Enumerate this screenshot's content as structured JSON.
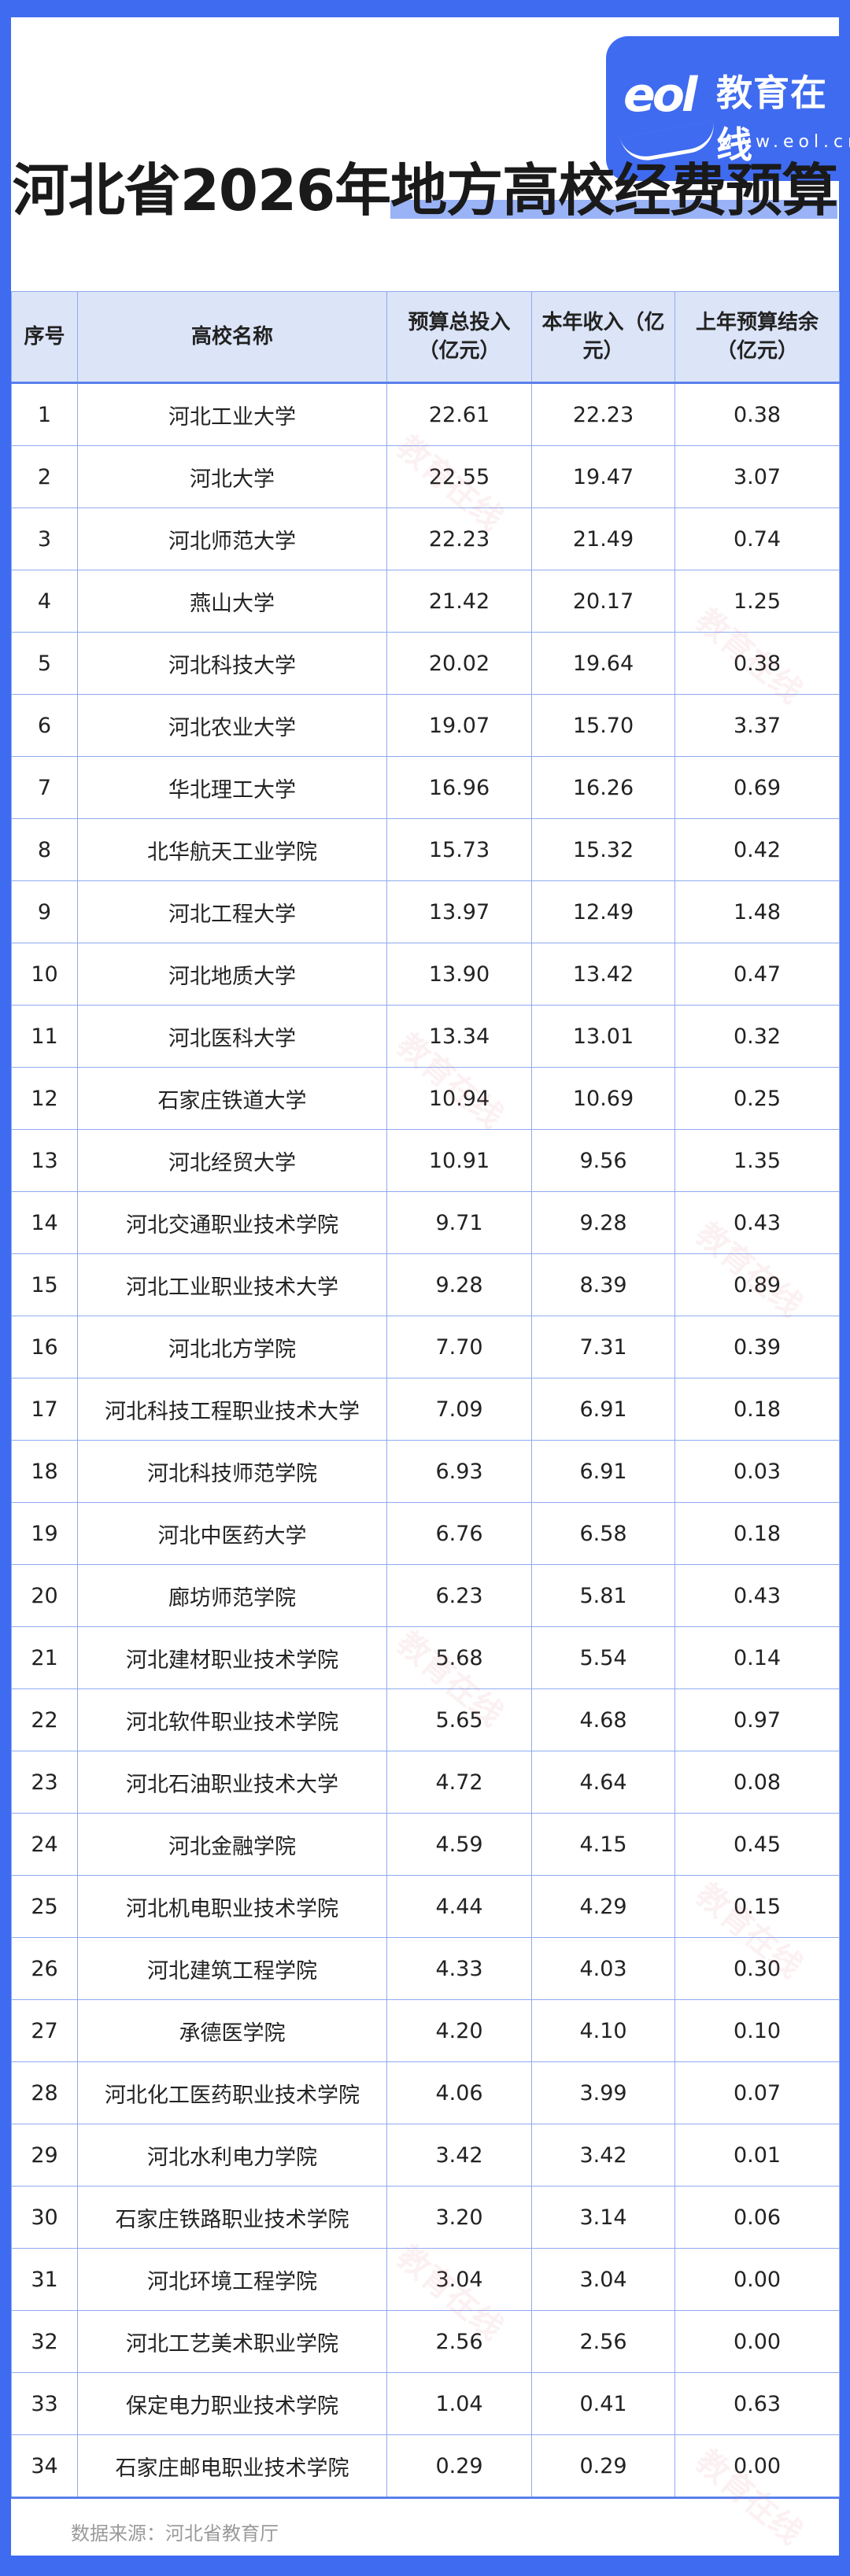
{
  "logo": {
    "mark": "eol",
    "name": "教育在线",
    "url": "www.eol.cn"
  },
  "title": {
    "part1": "河北省2026年",
    "part2": "地方高校经费预算"
  },
  "table": {
    "headers": [
      "序号",
      "高校名称",
      "预算总投入（亿元）",
      "本年收入（亿元）",
      "上年预算结余（亿元）"
    ],
    "rows": [
      [
        "1",
        "河北工业大学",
        "22.61",
        "22.23",
        "0.38"
      ],
      [
        "2",
        "河北大学",
        "22.55",
        "19.47",
        "3.07"
      ],
      [
        "3",
        "河北师范大学",
        "22.23",
        "21.49",
        "0.74"
      ],
      [
        "4",
        "燕山大学",
        "21.42",
        "20.17",
        "1.25"
      ],
      [
        "5",
        "河北科技大学",
        "20.02",
        "19.64",
        "0.38"
      ],
      [
        "6",
        "河北农业大学",
        "19.07",
        "15.70",
        "3.37"
      ],
      [
        "7",
        "华北理工大学",
        "16.96",
        "16.26",
        "0.69"
      ],
      [
        "8",
        "北华航天工业学院",
        "15.73",
        "15.32",
        "0.42"
      ],
      [
        "9",
        "河北工程大学",
        "13.97",
        "12.49",
        "1.48"
      ],
      [
        "10",
        "河北地质大学",
        "13.90",
        "13.42",
        "0.47"
      ],
      [
        "11",
        "河北医科大学",
        "13.34",
        "13.01",
        "0.32"
      ],
      [
        "12",
        "石家庄铁道大学",
        "10.94",
        "10.69",
        "0.25"
      ],
      [
        "13",
        "河北经贸大学",
        "10.91",
        "9.56",
        "1.35"
      ],
      [
        "14",
        "河北交通职业技术学院",
        "9.71",
        "9.28",
        "0.43"
      ],
      [
        "15",
        "河北工业职业技术大学",
        "9.28",
        "8.39",
        "0.89"
      ],
      [
        "16",
        "河北北方学院",
        "7.70",
        "7.31",
        "0.39"
      ],
      [
        "17",
        "河北科技工程职业技术大学",
        "7.09",
        "6.91",
        "0.18"
      ],
      [
        "18",
        "河北科技师范学院",
        "6.93",
        "6.91",
        "0.03"
      ],
      [
        "19",
        "河北中医药大学",
        "6.76",
        "6.58",
        "0.18"
      ],
      [
        "20",
        "廊坊师范学院",
        "6.23",
        "5.81",
        "0.43"
      ],
      [
        "21",
        "河北建材职业技术学院",
        "5.68",
        "5.54",
        "0.14"
      ],
      [
        "22",
        "河北软件职业技术学院",
        "5.65",
        "4.68",
        "0.97"
      ],
      [
        "23",
        "河北石油职业技术大学",
        "4.72",
        "4.64",
        "0.08"
      ],
      [
        "24",
        "河北金融学院",
        "4.59",
        "4.15",
        "0.45"
      ],
      [
        "25",
        "河北机电职业技术学院",
        "4.44",
        "4.29",
        "0.15"
      ],
      [
        "26",
        "河北建筑工程学院",
        "4.33",
        "4.03",
        "0.30"
      ],
      [
        "27",
        "承德医学院",
        "4.20",
        "4.10",
        "0.10"
      ],
      [
        "28",
        "河北化工医药职业技术学院",
        "4.06",
        "3.99",
        "0.07"
      ],
      [
        "29",
        "河北水利电力学院",
        "3.42",
        "3.42",
        "0.01"
      ],
      [
        "30",
        "石家庄铁路职业技术学院",
        "3.20",
        "3.14",
        "0.06"
      ],
      [
        "31",
        "河北环境工程学院",
        "3.04",
        "3.04",
        "0.00"
      ],
      [
        "32",
        "河北工艺美术职业学院",
        "2.56",
        "2.56",
        "0.00"
      ],
      [
        "33",
        "保定电力职业技术学院",
        "1.04",
        "0.41",
        "0.63"
      ],
      [
        "34",
        "石家庄邮电职业技术学院",
        "0.29",
        "0.29",
        "0.00"
      ]
    ]
  },
  "footer": {
    "source": "数据来源：河北省教育厅"
  },
  "colors": {
    "frame": "#3f6bf0",
    "header_bg": "#dce4f7",
    "grid": "#8eaaf0",
    "highlight": "#9ab3f7"
  }
}
